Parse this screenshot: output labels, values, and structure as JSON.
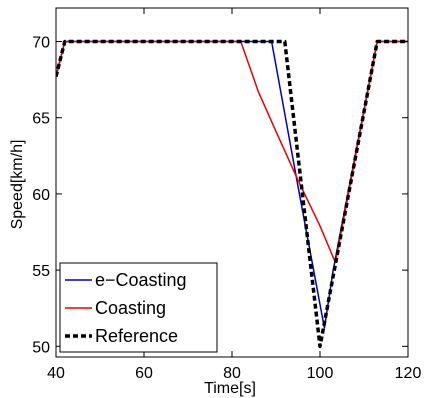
{
  "chart_data": {
    "type": "line",
    "title": "",
    "xlabel": "Time[s]",
    "ylabel": "Speed[km/h]",
    "xlim": [
      40,
      120
    ],
    "ylim": [
      49.3,
      72.2
    ],
    "xticks": [
      40,
      60,
      80,
      100,
      120
    ],
    "yticks": [
      50,
      55,
      60,
      65,
      70
    ],
    "grid": false,
    "legend_position": "bottom-left",
    "series": [
      {
        "name": "e−Coasting",
        "color": "#0000cc",
        "style": "solid",
        "points": [
          [
            40,
            67.7
          ],
          [
            42,
            70
          ],
          [
            89,
            70
          ],
          [
            95,
            60.5
          ],
          [
            101,
            51.2
          ],
          [
            103,
            55
          ],
          [
            113,
            70
          ],
          [
            120,
            70
          ]
        ]
      },
      {
        "name": "Coasting",
        "color": "#ee0000",
        "style": "solid",
        "points": [
          [
            40,
            67.7
          ],
          [
            42,
            70
          ],
          [
            82,
            70
          ],
          [
            86,
            66.7
          ],
          [
            90,
            64.1
          ],
          [
            95,
            60.9
          ],
          [
            100,
            57.9
          ],
          [
            103.5,
            55.5
          ],
          [
            113,
            70
          ],
          [
            120,
            70
          ]
        ]
      },
      {
        "name": "Reference",
        "color": "#000000",
        "style": "dashed",
        "points": [
          [
            40,
            67.7
          ],
          [
            42,
            70
          ],
          [
            92,
            70
          ],
          [
            100,
            50
          ],
          [
            113,
            70
          ],
          [
            120,
            70
          ]
        ]
      }
    ]
  }
}
